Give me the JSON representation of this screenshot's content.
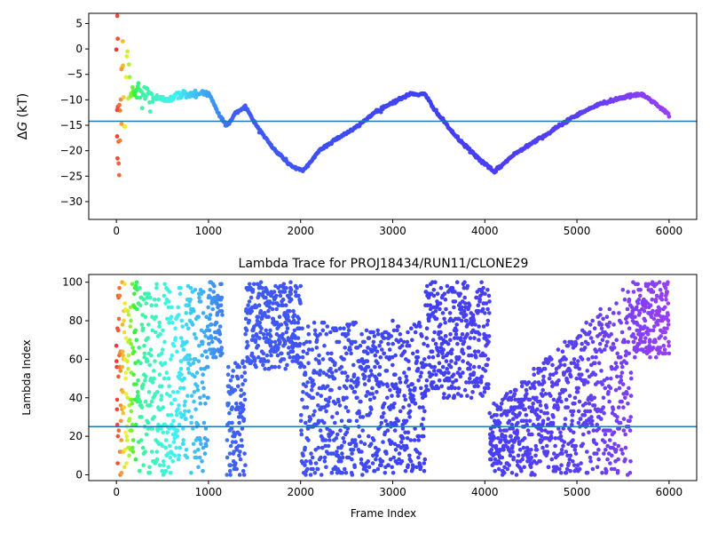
{
  "chart_data": [
    {
      "type": "scatter",
      "title": "",
      "xlabel": "",
      "ylabel": "ΔG (kT)",
      "xlim": [
        -300,
        6300
      ],
      "ylim": [
        -33.5,
        7
      ],
      "xticks": [
        0,
        1000,
        2000,
        3000,
        4000,
        5000,
        6000
      ],
      "yticks": [
        5,
        0,
        -5,
        -10,
        -15,
        -20,
        -25,
        -30
      ],
      "hline": -14.2,
      "hline_color": "#1f77b4",
      "colormap": "rainbow (red→violet along frame index, with early noise)",
      "series": [
        {
          "values_summary": "Free-energy trace vs frame index",
          "keypoints": [
            [
              0,
              -14
            ],
            [
              100,
              -8
            ],
            [
              300,
              -9
            ],
            [
              500,
              -10
            ],
            [
              700,
              -9.0
            ],
            [
              1000,
              -8.5
            ],
            [
              1100,
              -12.5
            ],
            [
              1200,
              -15.2
            ],
            [
              1300,
              -12.5
            ],
            [
              1400,
              -11.3
            ],
            [
              1500,
              -14.5
            ],
            [
              1700,
              -19.5
            ],
            [
              1900,
              -23
            ],
            [
              2030,
              -24
            ],
            [
              2200,
              -20
            ],
            [
              2400,
              -17.5
            ],
            [
              2600,
              -15.5
            ],
            [
              2800,
              -12.5
            ],
            [
              3000,
              -10.5
            ],
            [
              3200,
              -8.8
            ],
            [
              3350,
              -9.0
            ],
            [
              3500,
              -13
            ],
            [
              3700,
              -17.5
            ],
            [
              3900,
              -21
            ],
            [
              4100,
              -24.2
            ],
            [
              4300,
              -21
            ],
            [
              4500,
              -18.5
            ],
            [
              4700,
              -16.5
            ],
            [
              4900,
              -14
            ],
            [
              5100,
              -12
            ],
            [
              5300,
              -10.5
            ],
            [
              5500,
              -9.5
            ],
            [
              5700,
              -8.9
            ],
            [
              5800,
              -10
            ],
            [
              6000,
              -13
            ]
          ]
        }
      ],
      "early_noise_points": [
        [
          10,
          6.5
        ],
        [
          15,
          2
        ],
        [
          25,
          -22.5
        ],
        [
          30,
          -24.8
        ],
        [
          12,
          -21.5
        ],
        [
          40,
          -18
        ],
        [
          70,
          1.5
        ],
        [
          8,
          -12
        ],
        [
          55,
          -4
        ]
      ],
      "legend": "none",
      "grid": false
    },
    {
      "type": "scatter",
      "title": "Lambda Trace for PROJ18434/RUN11/CLONE29",
      "xlabel": "Frame Index",
      "ylabel": "Lambda Index",
      "xlim": [
        -300,
        6300
      ],
      "ylim": [
        -3,
        104
      ],
      "xticks": [
        0,
        1000,
        2000,
        3000,
        4000,
        5000,
        6000
      ],
      "yticks": [
        0,
        20,
        40,
        60,
        80,
        100
      ],
      "hline": 25,
      "hline_color": "#1f77b4",
      "colormap": "rainbow (red→violet along frame index)",
      "series": [
        {
          "values_summary": "Lambda index per frame (dense scatter)",
          "segments": [
            {
              "x_range": [
                0,
                1000
              ],
              "lambda_range": [
                0,
                100
              ],
              "note": "uniform spread"
            },
            {
              "x_range": [
                1000,
                1150
              ],
              "lambda_range": [
                60,
                100
              ]
            },
            {
              "x_range": [
                1200,
                1400
              ],
              "lambda_range": [
                0,
                60
              ]
            },
            {
              "x_range": [
                1400,
                2000
              ],
              "lambda_range": [
                55,
                100
              ]
            },
            {
              "x_range": [
                2000,
                3350
              ],
              "lambda_range": [
                0,
                80
              ]
            },
            {
              "x_range": [
                3350,
                4050
              ],
              "lambda_range": [
                40,
                100
              ]
            },
            {
              "x_range": [
                4050,
                5600
              ],
              "lambda_range": [
                0,
                70
              ],
              "note": "upper edge rises with frame"
            },
            {
              "x_range": [
                5600,
                6000
              ],
              "lambda_range": [
                60,
                100
              ]
            }
          ]
        }
      ],
      "legend": "none",
      "grid": false
    }
  ]
}
